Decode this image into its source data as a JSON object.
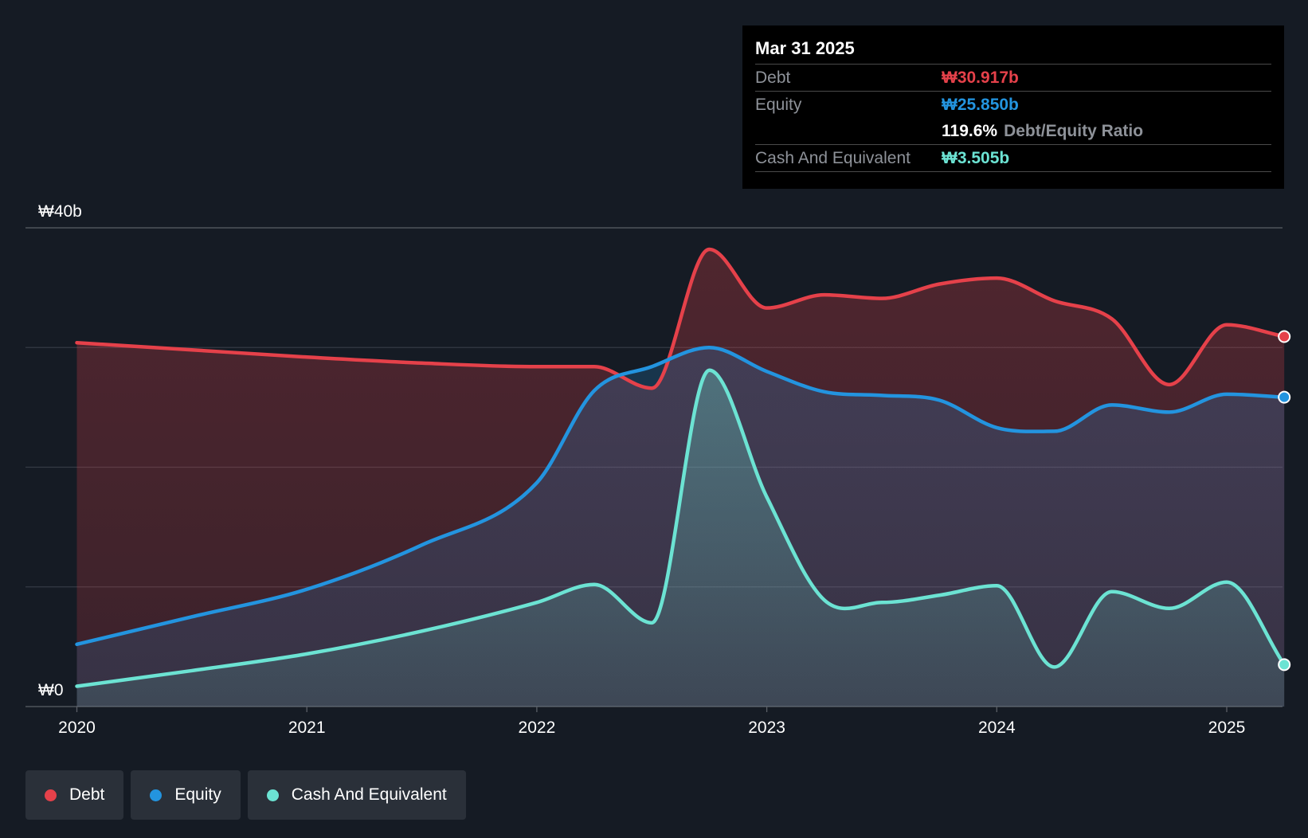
{
  "tooltip": {
    "date": "Mar 31 2025",
    "debt_label": "Debt",
    "debt_value": "₩30.917b",
    "equity_label": "Equity",
    "equity_value": "₩25.850b",
    "ratio_value": "119.6%",
    "ratio_label": "Debt/Equity Ratio",
    "cash_label": "Cash And Equivalent",
    "cash_value": "₩3.505b"
  },
  "legend": {
    "debt": "Debt",
    "equity": "Equity",
    "cash": "Cash And Equivalent"
  },
  "colors": {
    "debt": "#e5414a",
    "equity": "#2394df",
    "cash": "#6ce3d3",
    "background": "#151b24"
  },
  "chart_data": {
    "type": "area",
    "title": "",
    "xlabel": "",
    "ylabel": "",
    "ylim": [
      0,
      40
    ],
    "y_unit": "₩b",
    "y_tick_labels": [
      {
        "value": 40,
        "label": "₩40b"
      },
      {
        "value": 0,
        "label": "₩0"
      }
    ],
    "gridlines": [
      0,
      10,
      20,
      30,
      40
    ],
    "x_ticks": [
      2020,
      2021,
      2022,
      2023,
      2024,
      2025
    ],
    "x_range": [
      2019.78,
      2025.25
    ],
    "legend_position": "bottom-left",
    "series": [
      {
        "name": "Debt",
        "color": "#e5414a",
        "points": [
          [
            2020.0,
            30.4
          ],
          [
            2020.5,
            29.8
          ],
          [
            2021.0,
            29.2
          ],
          [
            2021.5,
            28.7
          ],
          [
            2022.0,
            28.4
          ],
          [
            2022.25,
            28.4
          ],
          [
            2022.5,
            26.6
          ],
          [
            2022.75,
            38.2
          ],
          [
            2023.0,
            33.3
          ],
          [
            2023.25,
            34.4
          ],
          [
            2023.5,
            34.1
          ],
          [
            2023.75,
            35.3
          ],
          [
            2024.0,
            35.8
          ],
          [
            2024.25,
            33.9
          ],
          [
            2024.5,
            32.4
          ],
          [
            2024.75,
            26.9
          ],
          [
            2025.0,
            31.9
          ],
          [
            2025.25,
            30.917
          ]
        ]
      },
      {
        "name": "Equity",
        "color": "#2394df",
        "points": [
          [
            2020.0,
            5.2
          ],
          [
            2020.5,
            7.5
          ],
          [
            2021.0,
            9.8
          ],
          [
            2021.5,
            13.5
          ],
          [
            2022.0,
            18.7
          ],
          [
            2022.25,
            26.4
          ],
          [
            2022.5,
            28.4
          ],
          [
            2022.75,
            30.0
          ],
          [
            2023.0,
            28.0
          ],
          [
            2023.25,
            26.3
          ],
          [
            2023.5,
            26.0
          ],
          [
            2023.75,
            25.6
          ],
          [
            2024.0,
            23.3
          ],
          [
            2024.25,
            23.0
          ],
          [
            2024.5,
            25.2
          ],
          [
            2024.75,
            24.6
          ],
          [
            2025.0,
            26.1
          ],
          [
            2025.25,
            25.85
          ]
        ]
      },
      {
        "name": "Cash And Equivalent",
        "color": "#6ce3d3",
        "points": [
          [
            2020.0,
            1.7
          ],
          [
            2020.5,
            3.0
          ],
          [
            2021.0,
            4.4
          ],
          [
            2021.5,
            6.3
          ],
          [
            2022.0,
            8.7
          ],
          [
            2022.25,
            10.2
          ],
          [
            2022.5,
            7.0
          ],
          [
            2022.75,
            28.1
          ],
          [
            2023.0,
            17.5
          ],
          [
            2023.25,
            8.9
          ],
          [
            2023.5,
            8.7
          ],
          [
            2023.75,
            9.3
          ],
          [
            2024.0,
            10.1
          ],
          [
            2024.25,
            3.3
          ],
          [
            2024.5,
            9.6
          ],
          [
            2024.75,
            8.2
          ],
          [
            2025.0,
            10.4
          ],
          [
            2025.25,
            3.505
          ]
        ]
      }
    ]
  }
}
